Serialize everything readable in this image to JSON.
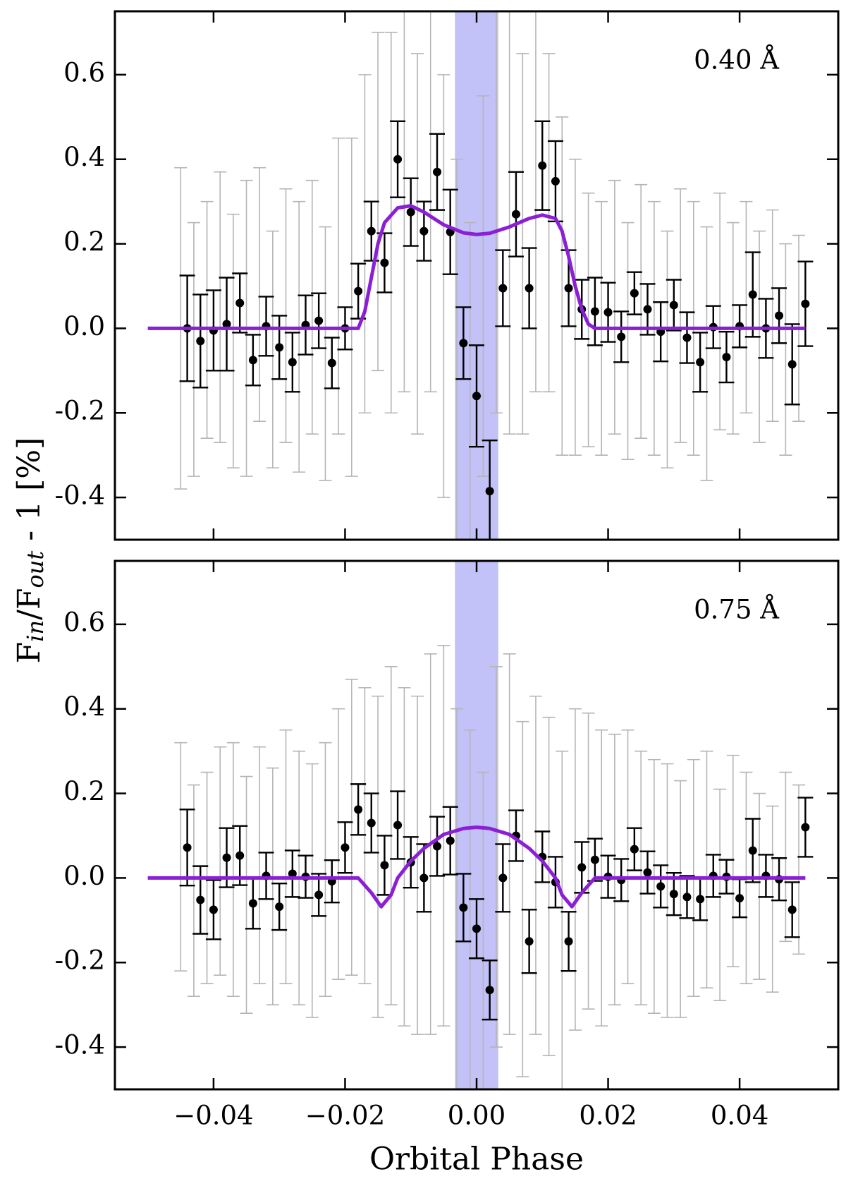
{
  "chart_data": [
    {
      "type": "scatter",
      "annotation": "0.40 Å",
      "xlim": [
        -0.055,
        0.055
      ],
      "ylim": [
        -0.5,
        0.75
      ],
      "xticks": [
        {
          "value": -0.04,
          "label": "−0.04"
        },
        {
          "value": -0.02,
          "label": "−0.02"
        },
        {
          "value": 0,
          "label": "0.00"
        },
        0.02,
        0.04
      ],
      "yticks": [
        0.6,
        0.4,
        0.2,
        {
          "value": 0,
          "label": "0.0"
        },
        -0.2,
        -0.4
      ],
      "band": {
        "xlim": [
          -0.0033,
          0.0033
        ],
        "color": "#b3b3f7"
      },
      "background_points": {
        "color": "#b5b5b5",
        "x": [
          -0.045,
          -0.043,
          -0.041,
          -0.039,
          -0.037,
          -0.035,
          -0.033,
          -0.031,
          -0.029,
          -0.027,
          -0.025,
          -0.023,
          -0.021,
          -0.019,
          -0.017,
          -0.015,
          -0.013,
          -0.011,
          -0.009,
          -0.007,
          -0.005,
          -0.003,
          -0.001,
          0.001,
          0.003,
          0.005,
          0.007,
          0.009,
          0.011,
          0.013,
          0.015,
          0.017,
          0.019,
          0.021,
          0.023,
          0.025,
          0.027,
          0.029,
          0.031,
          0.033,
          0.035,
          0.037,
          0.039,
          0.041,
          0.043,
          0.045,
          0.047,
          0.049
        ],
        "values": [
          0.0,
          -0.05,
          0.02,
          0.05,
          -0.03,
          0.0,
          0.08,
          -0.05,
          0.03,
          -0.02,
          0.05,
          -0.06,
          0.1,
          0.05,
          0.2,
          0.3,
          0.25,
          0.3,
          0.2,
          0.35,
          0.1,
          -0.1,
          -0.2,
          0.1,
          0.3,
          0.25,
          0.2,
          0.3,
          0.25,
          0.1,
          0.05,
          0.02,
          0.0,
          0.05,
          -0.03,
          0.04,
          0.0,
          -0.05,
          0.03,
          0.0,
          -0.06,
          0.04,
          0.0,
          0.05,
          -0.02,
          0.03,
          -0.05,
          0.0
        ],
        "errors": [
          0.38,
          0.3,
          0.28,
          0.32,
          0.3,
          0.35,
          0.3,
          0.28,
          0.3,
          0.32,
          0.3,
          0.3,
          0.35,
          0.4,
          0.4,
          0.4,
          0.45,
          0.45,
          0.45,
          0.5,
          0.5,
          0.5,
          0.45,
          0.45,
          0.5,
          0.5,
          0.45,
          0.45,
          0.4,
          0.4,
          0.35,
          0.3,
          0.3,
          0.3,
          0.28,
          0.3,
          0.3,
          0.28,
          0.3,
          0.3,
          0.3,
          0.28,
          0.25,
          0.25,
          0.25,
          0.25,
          0.25,
          0.22
        ]
      },
      "points": {
        "color": "#000000",
        "x": [
          -0.044,
          -0.042,
          -0.04,
          -0.038,
          -0.036,
          -0.034,
          -0.032,
          -0.03,
          -0.028,
          -0.026,
          -0.024,
          -0.022,
          -0.02,
          -0.018,
          -0.016,
          -0.014,
          -0.012,
          -0.01,
          -0.008,
          -0.006,
          -0.004,
          -0.002,
          0.0,
          0.002,
          0.004,
          0.006,
          0.008,
          0.01,
          0.012,
          0.014,
          0.016,
          0.018,
          0.02,
          0.022,
          0.024,
          0.026,
          0.028,
          0.03,
          0.032,
          0.034,
          0.036,
          0.038,
          0.04,
          0.042,
          0.044,
          0.046,
          0.048,
          0.05
        ],
        "values": [
          0.0,
          -0.03,
          -0.005,
          0.01,
          0.06,
          -0.075,
          0.005,
          -0.045,
          -0.08,
          0.008,
          0.018,
          -0.082,
          0.0,
          0.088,
          0.23,
          0.155,
          0.4,
          0.275,
          0.23,
          0.37,
          0.228,
          -0.035,
          -0.16,
          -0.385,
          0.095,
          0.27,
          0.095,
          0.385,
          0.348,
          0.095,
          0.045,
          0.04,
          0.038,
          -0.02,
          0.083,
          0.045,
          -0.008,
          0.055,
          -0.022,
          -0.08,
          0.003,
          -0.068,
          0.005,
          0.08,
          0.0,
          0.03,
          -0.085,
          0.058
        ],
        "errors": [
          0.125,
          0.11,
          0.095,
          0.11,
          0.07,
          0.06,
          0.07,
          0.075,
          0.07,
          0.07,
          0.065,
          0.06,
          0.05,
          0.065,
          0.07,
          0.07,
          0.09,
          0.08,
          0.07,
          0.09,
          0.1,
          0.085,
          0.12,
          0.12,
          0.09,
          0.1,
          0.095,
          0.105,
          0.095,
          0.09,
          0.07,
          0.08,
          0.07,
          0.06,
          0.05,
          0.06,
          0.07,
          0.06,
          0.06,
          0.07,
          0.05,
          0.06,
          0.05,
          0.1,
          0.07,
          0.065,
          0.095,
          0.1
        ]
      },
      "model": {
        "color": "#8b1fd6",
        "x": [
          -0.05,
          -0.018,
          -0.017,
          -0.016,
          -0.015,
          -0.014,
          -0.012,
          -0.01,
          -0.008,
          -0.005,
          -0.002,
          0.0,
          0.002,
          0.005,
          0.008,
          0.01,
          0.012,
          0.013,
          0.014,
          0.015,
          0.016,
          0.017,
          0.018,
          0.05
        ],
        "values": [
          0,
          0,
          0.04,
          0.12,
          0.2,
          0.25,
          0.285,
          0.29,
          0.275,
          0.245,
          0.226,
          0.222,
          0.225,
          0.24,
          0.26,
          0.268,
          0.26,
          0.23,
          0.17,
          0.1,
          0.045,
          0.01,
          0,
          0
        ]
      }
    },
    {
      "type": "scatter",
      "annotation": "0.75 Å",
      "xlim": [
        -0.055,
        0.055
      ],
      "ylim": [
        -0.5,
        0.75
      ],
      "xticks": [
        {
          "value": -0.04,
          "label": "−0.04"
        },
        {
          "value": -0.02,
          "label": "−0.02"
        },
        {
          "value": 0,
          "label": "0.00"
        },
        0.02,
        0.04
      ],
      "yticks": [
        0.6,
        0.4,
        0.2,
        {
          "value": 0,
          "label": "0.0"
        },
        -0.2,
        -0.4
      ],
      "band": {
        "xlim": [
          -0.0033,
          0.0033
        ],
        "color": "#b3b3f7"
      },
      "background_points": {
        "color": "#b5b5b5",
        "x": [
          -0.045,
          -0.043,
          -0.041,
          -0.039,
          -0.037,
          -0.035,
          -0.033,
          -0.031,
          -0.029,
          -0.027,
          -0.025,
          -0.023,
          -0.021,
          -0.019,
          -0.017,
          -0.015,
          -0.013,
          -0.011,
          -0.009,
          -0.007,
          -0.005,
          -0.003,
          -0.001,
          0.001,
          0.003,
          0.005,
          0.007,
          0.009,
          0.011,
          0.013,
          0.015,
          0.017,
          0.019,
          0.021,
          0.023,
          0.025,
          0.027,
          0.029,
          0.031,
          0.033,
          0.035,
          0.037,
          0.039,
          0.041,
          0.043,
          0.045,
          0.047,
          0.049
        ],
        "values": [
          0.05,
          -0.03,
          0.0,
          0.04,
          0.02,
          -0.04,
          0.03,
          -0.02,
          0.05,
          0.0,
          -0.03,
          0.02,
          0.08,
          0.12,
          0.1,
          0.05,
          0.1,
          0.05,
          0.03,
          0.08,
          0.1,
          -0.05,
          -0.1,
          -0.15,
          0.05,
          0.08,
          -0.05,
          0.03,
          -0.02,
          -0.1,
          0.02,
          0.04,
          0.0,
          0.02,
          0.05,
          0.0,
          -0.02,
          -0.03,
          -0.05,
          0.0,
          0.02,
          -0.04,
          0.04,
          0.0,
          -0.02,
          -0.05,
          0.05,
          0.02
        ],
        "errors": [
          0.27,
          0.25,
          0.25,
          0.27,
          0.3,
          0.28,
          0.28,
          0.28,
          0.3,
          0.3,
          0.3,
          0.3,
          0.32,
          0.35,
          0.35,
          0.38,
          0.4,
          0.4,
          0.4,
          0.45,
          0.45,
          0.45,
          0.45,
          0.4,
          0.45,
          0.45,
          0.42,
          0.4,
          0.4,
          0.4,
          0.38,
          0.35,
          0.35,
          0.32,
          0.3,
          0.3,
          0.3,
          0.3,
          0.28,
          0.28,
          0.28,
          0.25,
          0.25,
          0.25,
          0.22,
          0.22,
          0.2,
          0.2
        ]
      },
      "points": {
        "color": "#000000",
        "x": [
          -0.044,
          -0.042,
          -0.04,
          -0.038,
          -0.036,
          -0.034,
          -0.032,
          -0.03,
          -0.028,
          -0.026,
          -0.024,
          -0.022,
          -0.02,
          -0.018,
          -0.016,
          -0.014,
          -0.012,
          -0.01,
          -0.008,
          -0.006,
          -0.004,
          -0.002,
          0.0,
          0.002,
          0.004,
          0.006,
          0.008,
          0.01,
          0.012,
          0.014,
          0.016,
          0.018,
          0.02,
          0.022,
          0.024,
          0.026,
          0.028,
          0.03,
          0.032,
          0.034,
          0.036,
          0.038,
          0.04,
          0.042,
          0.044,
          0.046,
          0.048,
          0.05
        ],
        "values": [
          0.072,
          -0.052,
          -0.075,
          0.048,
          0.053,
          -0.06,
          0.005,
          -0.068,
          0.01,
          0.003,
          -0.04,
          -0.008,
          0.072,
          0.162,
          0.13,
          0.03,
          0.125,
          0.037,
          0.0,
          0.075,
          0.088,
          -0.07,
          -0.12,
          -0.265,
          0.0,
          0.1,
          -0.15,
          0.05,
          -0.01,
          -0.15,
          0.025,
          0.043,
          0.003,
          -0.005,
          0.068,
          0.013,
          -0.02,
          -0.038,
          -0.045,
          -0.05,
          0.005,
          0.003,
          -0.048,
          0.065,
          0.005,
          -0.003,
          -0.075,
          0.12
        ],
        "errors": [
          0.09,
          0.08,
          0.07,
          0.07,
          0.07,
          0.06,
          0.055,
          0.055,
          0.055,
          0.05,
          0.05,
          0.05,
          0.06,
          0.06,
          0.07,
          0.07,
          0.08,
          0.06,
          0.08,
          0.07,
          0.08,
          0.08,
          0.07,
          0.07,
          0.08,
          0.06,
          0.075,
          0.06,
          0.06,
          0.07,
          0.06,
          0.05,
          0.05,
          0.05,
          0.05,
          0.05,
          0.05,
          0.05,
          0.05,
          0.05,
          0.05,
          0.04,
          0.045,
          0.075,
          0.05,
          0.05,
          0.065,
          0.07
        ]
      },
      "model": {
        "color": "#8b1fd6",
        "x": [
          -0.05,
          -0.018,
          -0.016,
          -0.0145,
          -0.013,
          -0.012,
          -0.01,
          -0.008,
          -0.005,
          -0.002,
          0.0,
          0.002,
          0.005,
          0.008,
          0.01,
          0.012,
          0.013,
          0.0145,
          0.016,
          0.018,
          0.05
        ],
        "values": [
          0,
          0,
          -0.035,
          -0.068,
          -0.04,
          0.0,
          0.04,
          0.07,
          0.103,
          0.117,
          0.12,
          0.117,
          0.103,
          0.07,
          0.04,
          0.0,
          -0.04,
          -0.068,
          -0.035,
          0,
          0
        ]
      }
    }
  ],
  "xlabel": "Orbital Phase",
  "ylabel": [
    "F",
    "in",
    "/F",
    "out",
    " - 1 [%]"
  ]
}
